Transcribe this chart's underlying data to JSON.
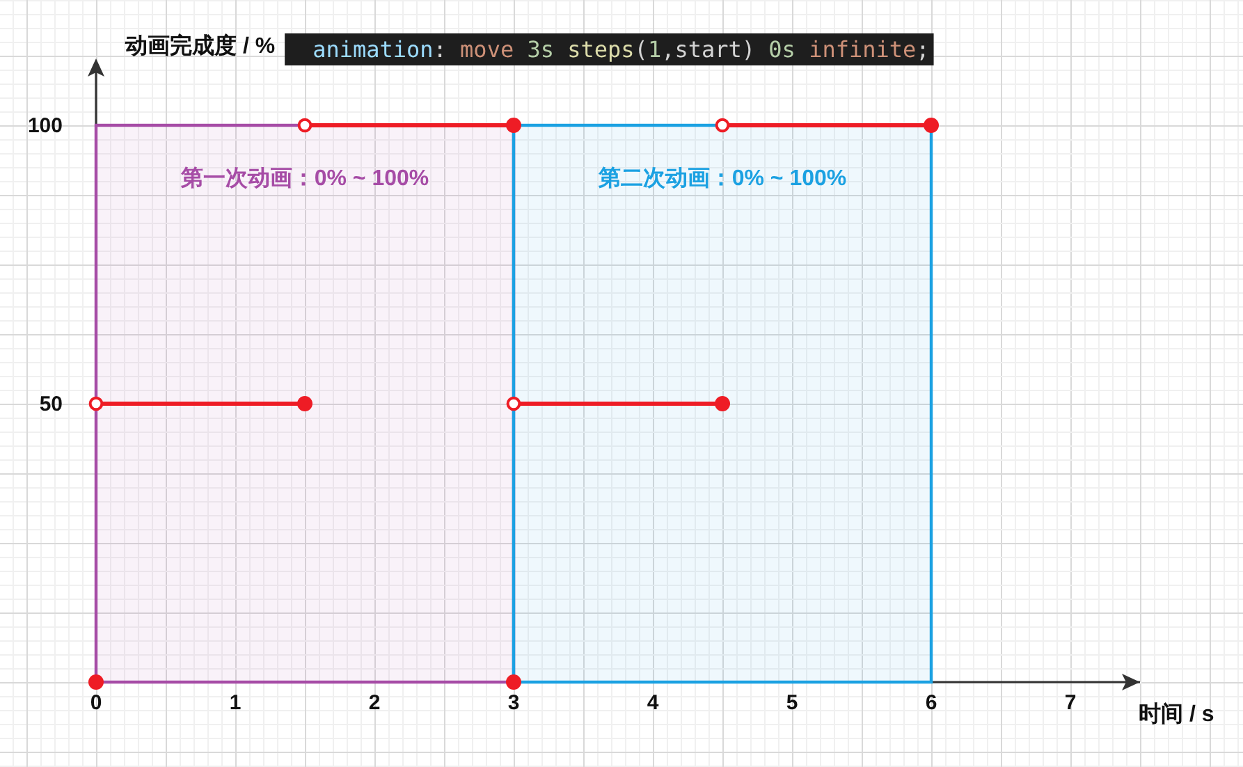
{
  "chart_data": {
    "type": "line",
    "title": "animation: move 3s steps(1,start) 0s infinite;",
    "xlabel": "时间 / s",
    "ylabel": "动画完成度 / %",
    "xlim": [
      0,
      7.5
    ],
    "ylim": [
      0,
      100
    ],
    "xticks": [
      0,
      1,
      2,
      3,
      4,
      5,
      6,
      7
    ],
    "yticks": [
      50,
      100
    ],
    "grid": true,
    "bands": [
      {
        "axis": "x",
        "from": 0,
        "to": 3,
        "label": "第一次动画：0% ~ 100%",
        "color": "#a64ca6"
      },
      {
        "axis": "x",
        "from": 3,
        "to": 6,
        "label": "第二次动画：0% ~ 100%",
        "color": "#1ba1e2"
      }
    ],
    "series": [
      {
        "color": "#ee1c25",
        "marker": "circle",
        "x": [
          0,
          1.5
        ],
        "values": [
          50,
          50
        ]
      },
      {
        "color": "#ee1c25",
        "marker": "circle",
        "x": [
          1.5,
          3
        ],
        "values": [
          100,
          100
        ]
      },
      {
        "color": "#ee1c25",
        "marker": "circle",
        "x": [
          3,
          4.5
        ],
        "values": [
          50,
          50
        ]
      },
      {
        "color": "#ee1c25",
        "marker": "circle",
        "x": [
          4.5,
          6
        ],
        "values": [
          100,
          100
        ]
      },
      {
        "type": "scatter",
        "color": "#ee1c25",
        "marker": "circle",
        "x": [
          0,
          3
        ],
        "values": [
          0,
          0
        ]
      }
    ]
  }
}
